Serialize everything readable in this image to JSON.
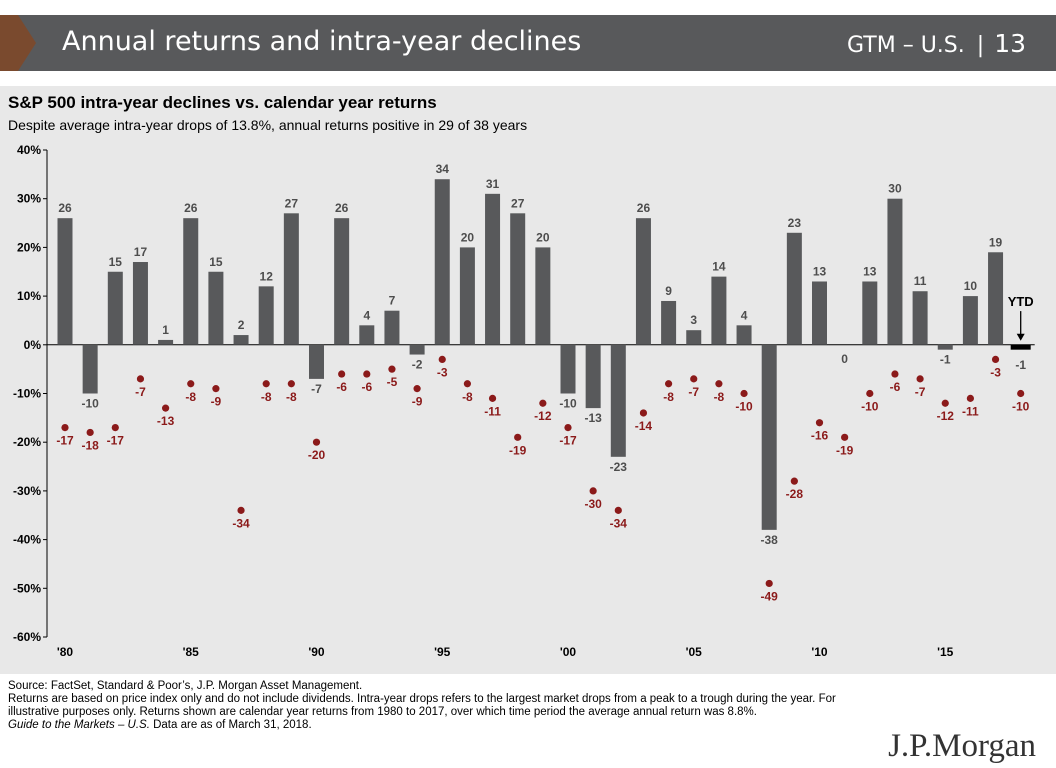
{
  "header": {
    "title": "Annual returns and intra-year declines",
    "section": "GTM – U.S.",
    "separator": "|",
    "page": "13"
  },
  "colors": {
    "header_bg": "#58595b",
    "chevron": "#7a4a2e",
    "bar": "#58595b",
    "ytd_bar": "#000000",
    "dot": "#8b1a1a"
  },
  "chart_data": {
    "type": "bar",
    "title": "S&P 500 intra-year declines vs. calendar year returns",
    "subtitle": "Despite average intra-year drops of 13.8%, annual returns positive in 29 of 38 years",
    "years": [
      1980,
      1981,
      1982,
      1983,
      1984,
      1985,
      1986,
      1987,
      1988,
      1989,
      1990,
      1991,
      1992,
      1993,
      1994,
      1995,
      1996,
      1997,
      1998,
      1999,
      2000,
      2001,
      2002,
      2003,
      2004,
      2005,
      2006,
      2007,
      2008,
      2009,
      2010,
      2011,
      2012,
      2013,
      2014,
      2015,
      2016,
      2017,
      2018
    ],
    "series": [
      {
        "name": "Calendar year returns",
        "kind": "bar",
        "values": [
          26,
          -10,
          15,
          17,
          1,
          26,
          15,
          2,
          12,
          27,
          -7,
          26,
          4,
          7,
          -2,
          34,
          20,
          31,
          27,
          20,
          -10,
          -13,
          -23,
          26,
          9,
          3,
          14,
          4,
          -38,
          23,
          13,
          0,
          13,
          30,
          11,
          -1,
          10,
          19,
          -1
        ],
        "labels": [
          "26",
          "-10",
          "15",
          "17",
          "1",
          "26",
          "15",
          "2",
          "12",
          "27",
          "-7",
          "26",
          "4",
          "7",
          "-2",
          "34",
          "20",
          "31",
          "27",
          "20",
          "-10",
          "-13",
          "-23",
          "26",
          "9",
          "3",
          "14",
          "4",
          "-38",
          "23",
          "13",
          "0",
          "13",
          "30",
          "11",
          "-1",
          "10",
          "19",
          "-1"
        ]
      },
      {
        "name": "Intra-year declines",
        "kind": "dot",
        "values": [
          -17,
          -18,
          -17,
          -7,
          -13,
          -8,
          -9,
          -34,
          -8,
          -8,
          -20,
          -6,
          -6,
          -5,
          -9,
          -3,
          -8,
          -11,
          -19,
          -12,
          -17,
          -30,
          -34,
          -14,
          -8,
          -7,
          -8,
          -10,
          -49,
          -28,
          -16,
          -19,
          -10,
          -6,
          -7,
          -12,
          -11,
          -3,
          -10
        ],
        "labels": [
          "-17",
          "-18",
          "-17",
          "-7",
          "-13",
          "-8",
          "-9",
          "-34",
          "-8",
          "-8",
          "-20",
          "-6",
          "-6",
          "-5",
          "-9",
          "-3",
          "-8",
          "-11",
          "-19",
          "-12",
          "-17",
          "-30",
          "-34",
          "-14",
          "-8",
          "-7",
          "-8",
          "-10",
          "-49",
          "-28",
          "-16",
          "-19",
          "-10",
          "-6",
          "-7",
          "-12",
          "-11",
          "-3",
          "-10"
        ]
      }
    ],
    "ylim": [
      -60,
      40
    ],
    "yticks": [
      40,
      30,
      20,
      10,
      0,
      -10,
      -20,
      -30,
      -40,
      -50,
      -60
    ],
    "ytick_labels": [
      "40%",
      "30%",
      "20%",
      "10%",
      "0%",
      "-10%",
      "-20%",
      "-30%",
      "-40%",
      "-50%",
      "-60%"
    ],
    "xtick_years": [
      1980,
      1985,
      1990,
      1995,
      2000,
      2005,
      2010,
      2015
    ],
    "xtick_labels": [
      "'80",
      "'85",
      "'90",
      "'95",
      "'00",
      "'05",
      "'10",
      "'15"
    ],
    "ytd_label": "YTD",
    "grid": false
  },
  "footer": {
    "source": "Source: FactSet, Standard & Poor’s, J.P. Morgan Asset Management.",
    "note": "Returns are based on price index only and do not include dividends. Intra-year drops refers to the largest market drops from a peak to a trough during the year. For illustrative purposes only. Returns shown are calendar year returns from 1980 to 2017, over which time period the average annual return was 8.8%.",
    "guide": "Guide to the Markets – U.S.",
    "date": " Data are as of March 31, 2018."
  },
  "logo": "J.P.Morgan"
}
